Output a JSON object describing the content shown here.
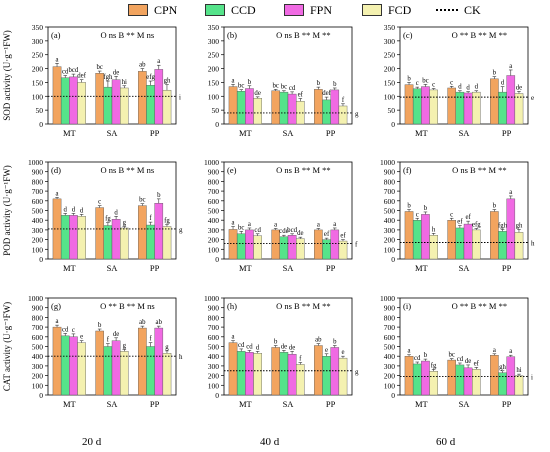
{
  "legend": [
    {
      "name": "CPN",
      "color": "#F2A45F"
    },
    {
      "name": "CCD",
      "color": "#55E38A"
    },
    {
      "name": "FPN",
      "color": "#F06AE3"
    },
    {
      "name": "FCD",
      "color": "#F4F1B0"
    },
    {
      "name": "CK",
      "style": "dotted"
    }
  ],
  "columns": [
    "20 d",
    "40 d",
    "60 d"
  ],
  "rows": [
    {
      "ylabel": "SOD activity (U·g⁻¹FW)",
      "ylim": [
        0,
        350
      ],
      "ticks": [
        0,
        50,
        100,
        150,
        200,
        250,
        300,
        350
      ]
    },
    {
      "ylabel": "POD activity (U·g⁻¹FW)",
      "ylim": [
        0,
        1000
      ],
      "ticks": [
        0,
        100,
        200,
        300,
        400,
        500,
        600,
        700,
        800,
        900,
        1000
      ]
    },
    {
      "ylabel": "CAT activity (U·g⁻¹FW)",
      "ylim": [
        0,
        1000
      ],
      "ticks": [
        0,
        100,
        200,
        300,
        400,
        500,
        600,
        700,
        800,
        900,
        1000
      ]
    }
  ],
  "chart_data": [
    {
      "type": "bar",
      "panel": "(a)",
      "stats": "O ns  B **  M ns",
      "categories": [
        "MT",
        "SA",
        "PP"
      ],
      "ylim": [
        0,
        350
      ],
      "series": [
        {
          "name": "CPN",
          "values": [
            207,
            183,
            190
          ],
          "err": [
            12,
            8,
            10
          ],
          "letters": [
            "a",
            "bc",
            "ab"
          ]
        },
        {
          "name": "CCD",
          "values": [
            167,
            133,
            140
          ],
          "err": [
            8,
            22,
            15
          ],
          "letters": [
            "cd",
            "fgh",
            "efg"
          ]
        },
        {
          "name": "FPN",
          "values": [
            170,
            160,
            197
          ],
          "err": [
            10,
            12,
            15
          ],
          "letters": [
            "bcd",
            "de",
            "a"
          ]
        },
        {
          "name": "FCD",
          "values": [
            150,
            130,
            122
          ],
          "err": [
            10,
            8,
            20
          ],
          "letters": [
            "def",
            "hi",
            "gh"
          ]
        }
      ],
      "ck": 100,
      "ck_label": "i"
    },
    {
      "type": "bar",
      "panel": "(b)",
      "stats": "O ns  B **  M **",
      "categories": [
        "MT",
        "SA",
        "PP"
      ],
      "ylim": [
        0,
        350
      ],
      "series": [
        {
          "name": "CPN",
          "values": [
            135,
            120,
            125
          ],
          "err": [
            8,
            5,
            8
          ],
          "letters": [
            "a",
            "bc",
            "b"
          ]
        },
        {
          "name": "CCD",
          "values": [
            118,
            115,
            87
          ],
          "err": [
            6,
            5,
            10
          ],
          "letters": [
            "bc",
            "bc",
            "def"
          ]
        },
        {
          "name": "FPN",
          "values": [
            128,
            108,
            123
          ],
          "err": [
            10,
            8,
            7
          ],
          "letters": [
            "b",
            "cd",
            "b"
          ]
        },
        {
          "name": "FCD",
          "values": [
            93,
            82,
            65
          ],
          "err": [
            5,
            10,
            8
          ],
          "letters": [
            "de",
            "ef",
            "f"
          ]
        }
      ],
      "ck": 40,
      "ck_label": "g"
    },
    {
      "type": "bar",
      "panel": "(c)",
      "stats": "O **  B **  M **",
      "categories": [
        "MT",
        "SA",
        "PP"
      ],
      "ylim": [
        0,
        350
      ],
      "series": [
        {
          "name": "CPN",
          "values": [
            142,
            130,
            163
          ],
          "err": [
            8,
            6,
            8
          ],
          "letters": [
            "b",
            "c",
            "b"
          ]
        },
        {
          "name": "CCD",
          "values": [
            127,
            115,
            115
          ],
          "err": [
            6,
            5,
            20
          ],
          "letters": [
            "c",
            "d",
            "d"
          ]
        },
        {
          "name": "FPN",
          "values": [
            135,
            112,
            175
          ],
          "err": [
            8,
            5,
            20
          ],
          "letters": [
            "bc",
            "d",
            "a"
          ]
        },
        {
          "name": "FCD",
          "values": [
            123,
            115,
            110
          ],
          "err": [
            5,
            5,
            8
          ],
          "letters": [
            "c",
            "d",
            "de"
          ]
        }
      ],
      "ck": 97,
      "ck_label": "e"
    },
    {
      "type": "bar",
      "panel": "(d)",
      "stats": "O ns  B **  M ns",
      "categories": [
        "MT",
        "SA",
        "PP"
      ],
      "ylim": [
        0,
        1000
      ],
      "series": [
        {
          "name": "CPN",
          "values": [
            620,
            530,
            550
          ],
          "err": [
            15,
            20,
            20
          ],
          "letters": [
            "a",
            "c",
            "bc"
          ]
        },
        {
          "name": "CCD",
          "values": [
            450,
            345,
            350
          ],
          "err": [
            20,
            30,
            30
          ],
          "letters": [
            "d",
            "fg",
            "f"
          ]
        },
        {
          "name": "FPN",
          "values": [
            450,
            410,
            575
          ],
          "err": [
            20,
            30,
            45
          ],
          "letters": [
            "d",
            "d",
            "b"
          ]
        },
        {
          "name": "FCD",
          "values": [
            440,
            320,
            335
          ],
          "err": [
            20,
            15,
            20
          ],
          "letters": [
            "d",
            "g",
            "fg"
          ]
        }
      ],
      "ck": 310,
      "ck_label": "g"
    },
    {
      "type": "bar",
      "panel": "(e)",
      "stats": "O ns  B **  M **",
      "categories": [
        "MT",
        "SA",
        "PP"
      ],
      "ylim": [
        0,
        1000
      ],
      "series": [
        {
          "name": "CPN",
          "values": [
            305,
            300,
            300
          ],
          "err": [
            30,
            15,
            15
          ],
          "letters": [
            "a",
            "a",
            "a"
          ]
        },
        {
          "name": "CCD",
          "values": [
            260,
            230,
            200
          ],
          "err": [
            25,
            15,
            15
          ],
          "letters": [
            "bc",
            "cde",
            "ef"
          ]
        },
        {
          "name": "FPN",
          "values": [
            300,
            245,
            300
          ],
          "err": [
            20,
            15,
            20
          ],
          "letters": [
            "a",
            "bcd",
            "a"
          ]
        },
        {
          "name": "FCD",
          "values": [
            240,
            210,
            185
          ],
          "err": [
            20,
            15,
            15
          ],
          "letters": [
            "cd",
            "de",
            "ef"
          ]
        }
      ],
      "ck": 160,
      "ck_label": "f"
    },
    {
      "type": "bar",
      "panel": "(f)",
      "stats": "O ns  B **  M **",
      "categories": [
        "MT",
        "SA",
        "PP"
      ],
      "ylim": [
        0,
        1000
      ],
      "series": [
        {
          "name": "CPN",
          "values": [
            490,
            400,
            490
          ],
          "err": [
            20,
            20,
            20
          ],
          "letters": [
            "b",
            "c",
            "b"
          ]
        },
        {
          "name": "CCD",
          "values": [
            400,
            320,
            285
          ],
          "err": [
            20,
            25,
            20
          ],
          "letters": [
            "c",
            "ef",
            "fgh"
          ]
        },
        {
          "name": "FPN",
          "values": [
            460,
            360,
            620
          ],
          "err": [
            25,
            30,
            30
          ],
          "letters": [
            "b",
            "ef",
            "a"
          ]
        },
        {
          "name": "FCD",
          "values": [
            245,
            300,
            275
          ],
          "err": [
            20,
            15,
            30
          ],
          "letters": [
            "h",
            "efg",
            "gh"
          ]
        }
      ],
      "ck": 170,
      "ck_label": "h"
    },
    {
      "type": "bar",
      "panel": "(g)",
      "stats": "O **  B **  M ns",
      "categories": [
        "MT",
        "SA",
        "PP"
      ],
      "ylim": [
        0,
        1000
      ],
      "series": [
        {
          "name": "CPN",
          "values": [
            700,
            660,
            690
          ],
          "err": [
            20,
            20,
            20
          ],
          "letters": [
            "a",
            "b",
            "ab"
          ]
        },
        {
          "name": "CCD",
          "values": [
            610,
            500,
            500
          ],
          "err": [
            25,
            30,
            40
          ],
          "letters": [
            "cd",
            "f",
            "f"
          ]
        },
        {
          "name": "FPN",
          "values": [
            600,
            560,
            690
          ],
          "err": [
            30,
            30,
            20
          ],
          "letters": [
            "c",
            "de",
            "ab"
          ]
        },
        {
          "name": "FCD",
          "values": [
            540,
            450,
            430
          ],
          "err": [
            20,
            20,
            25
          ],
          "letters": [
            "e",
            "g",
            "g"
          ]
        }
      ],
      "ck": 400,
      "ck_label": "h"
    },
    {
      "type": "bar",
      "panel": "(h)",
      "stats": "O ns  B **  M **",
      "categories": [
        "MT",
        "SA",
        "PP"
      ],
      "ylim": [
        0,
        1000
      ],
      "series": [
        {
          "name": "CPN",
          "values": [
            540,
            490,
            510
          ],
          "err": [
            20,
            20,
            20
          ],
          "letters": [
            "a",
            "b",
            "ab"
          ]
        },
        {
          "name": "CCD",
          "values": [
            450,
            440,
            400
          ],
          "err": [
            25,
            20,
            25
          ],
          "letters": [
            "cd",
            "de",
            "e"
          ]
        },
        {
          "name": "FPN",
          "values": [
            440,
            420,
            490
          ],
          "err": [
            20,
            30,
            20
          ],
          "letters": [
            "cd",
            "de",
            "b"
          ]
        },
        {
          "name": "FCD",
          "values": [
            430,
            315,
            380
          ],
          "err": [
            20,
            20,
            20
          ],
          "letters": [
            "d",
            "f",
            "e"
          ]
        }
      ],
      "ck": 250,
      "ck_label": "g"
    },
    {
      "type": "bar",
      "panel": "(i)",
      "stats": "O **  B **  M **",
      "categories": [
        "MT",
        "SA",
        "PP"
      ],
      "ylim": [
        0,
        1000
      ],
      "series": [
        {
          "name": "CPN",
          "values": [
            400,
            360,
            410
          ],
          "err": [
            15,
            15,
            15
          ],
          "letters": [
            "a",
            "bc",
            "a"
          ]
        },
        {
          "name": "CCD",
          "values": [
            320,
            310,
            230
          ],
          "err": [
            20,
            20,
            20
          ],
          "letters": [
            "cd",
            "cd",
            "gh"
          ]
        },
        {
          "name": "FPN",
          "values": [
            350,
            280,
            395
          ],
          "err": [
            20,
            30,
            15
          ],
          "letters": [
            "b",
            "de",
            "a"
          ]
        },
        {
          "name": "FCD",
          "values": [
            245,
            265,
            200
          ],
          "err": [
            20,
            20,
            15
          ],
          "letters": [
            "fg",
            "ef",
            "hi"
          ]
        }
      ],
      "ck": 190,
      "ck_label": "i"
    }
  ]
}
